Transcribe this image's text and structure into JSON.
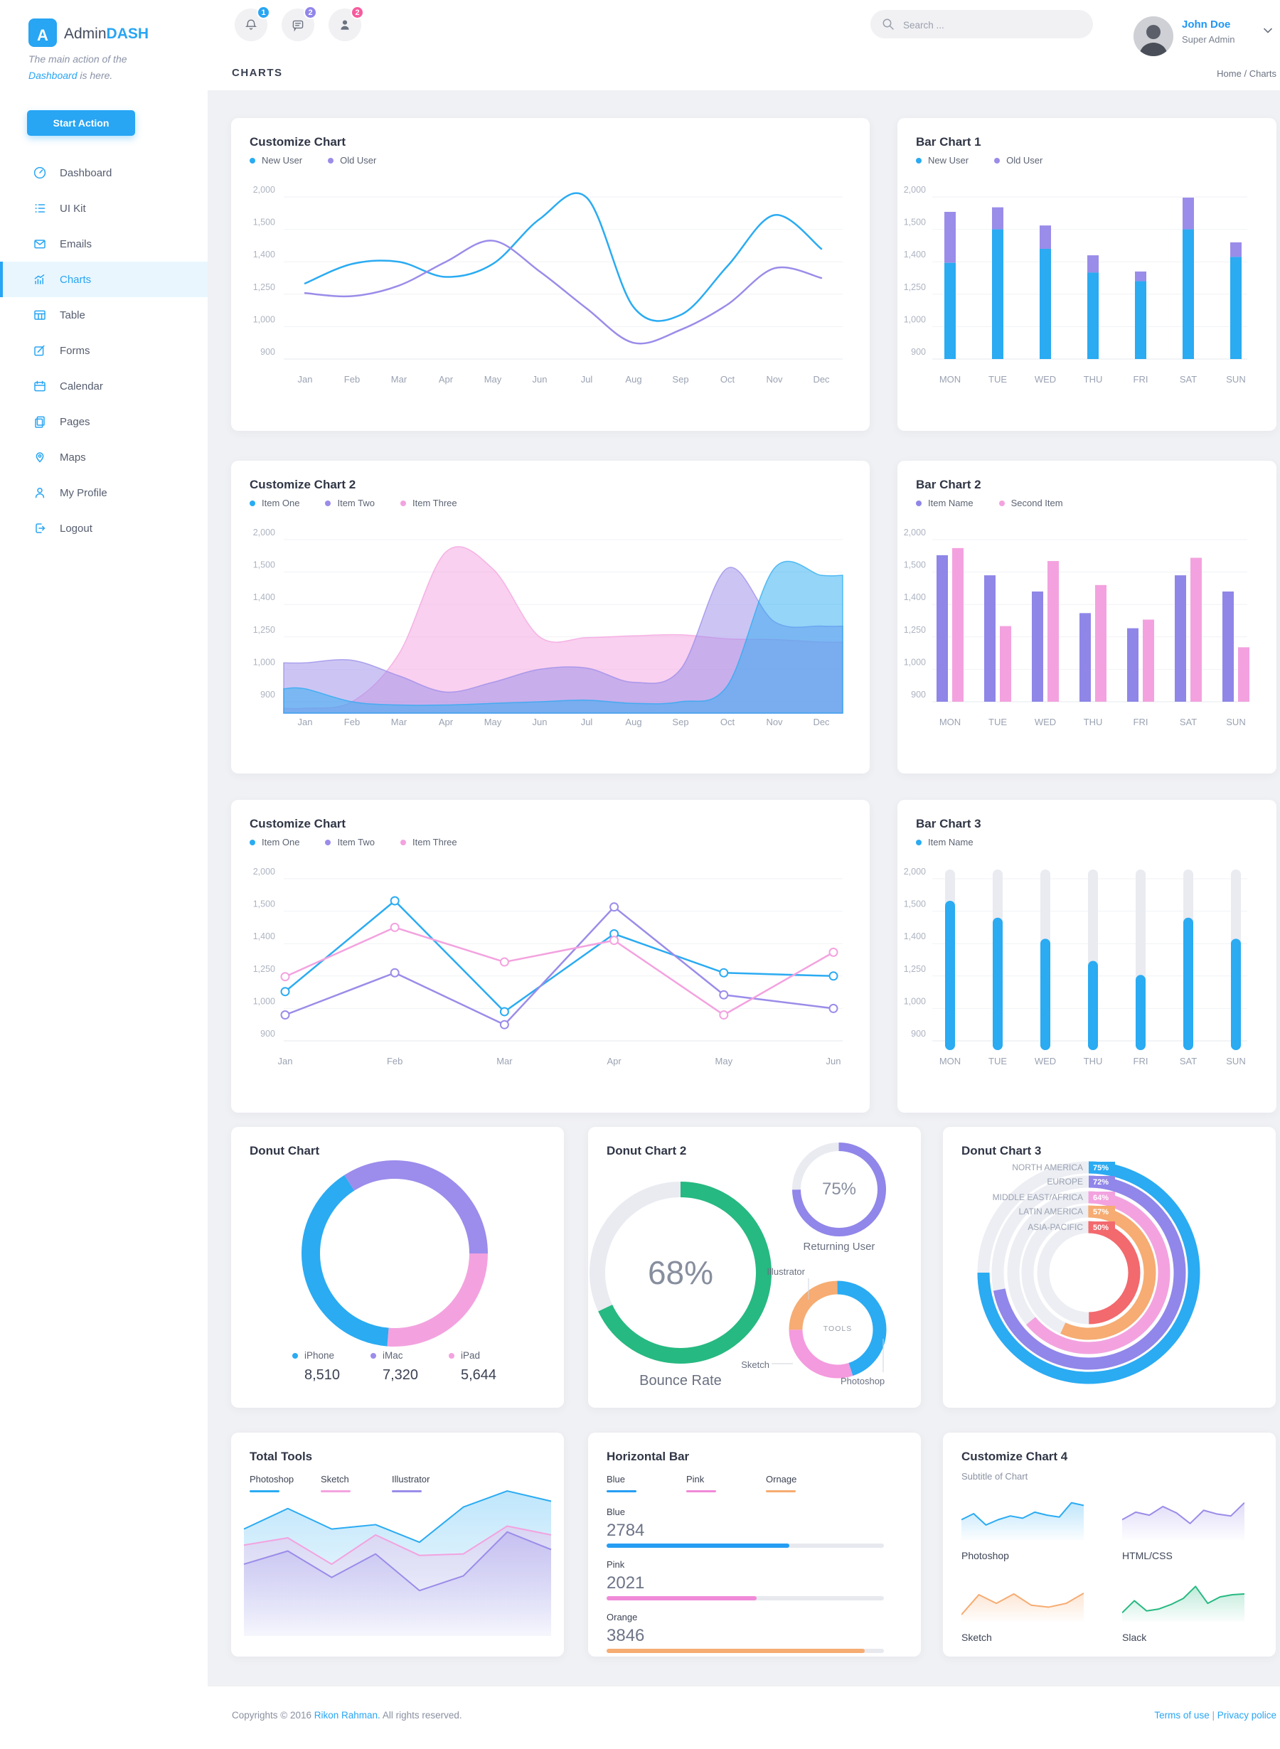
{
  "colors": {
    "accent_blue": "#28a5f3",
    "chart_blue": "#2aabf2",
    "chart_purple": "#9a8ce9",
    "chart_pink": "#f3a2df",
    "chart_green": "#26b981",
    "chart_orange": "#f6ac72",
    "chart_red": "#f2696e",
    "track_gray": "#e9ebf1"
  },
  "sidebar": {
    "logo_letter": "A",
    "brand_admin": "Admin",
    "brand_dash": "DASH",
    "tagline_part1": "The main action of the",
    "tagline_highlight": "Dashboard",
    "tagline_part2": " is here.",
    "action_button": "Start Action",
    "items": [
      {
        "label": "Dashboard",
        "icon": "speedometer-icon",
        "active": false
      },
      {
        "label": "UI Kit",
        "icon": "list-icon",
        "active": false
      },
      {
        "label": "Emails",
        "icon": "envelope-icon",
        "active": false
      },
      {
        "label": "Charts",
        "icon": "chart-icon",
        "active": true
      },
      {
        "label": "Table",
        "icon": "table-icon",
        "active": false
      },
      {
        "label": "Forms",
        "icon": "edit-icon",
        "active": false
      },
      {
        "label": "Calendar",
        "icon": "calendar-icon",
        "active": false
      },
      {
        "label": "Pages",
        "icon": "pages-icon",
        "active": false
      },
      {
        "label": "Maps",
        "icon": "map-pin-icon",
        "active": false
      },
      {
        "label": "My Profile",
        "icon": "user-icon",
        "active": false
      },
      {
        "label": "Logout",
        "icon": "logout-icon",
        "active": false
      }
    ]
  },
  "topbar": {
    "notifications": [
      {
        "icon": "bell-icon",
        "badge": "1",
        "badge_color": "#28a5f3"
      },
      {
        "icon": "chat-icon",
        "badge": "2",
        "badge_color": "#9186e9"
      },
      {
        "icon": "person-icon",
        "badge": "2",
        "badge_color": "#f75b9d"
      }
    ],
    "search_placeholder": "Search ...",
    "user_name": "John Doe",
    "user_role": "Super Admin"
  },
  "page": {
    "heading": "CHARTS",
    "breadcrumb_home": "Home",
    "breadcrumb_sep": " / ",
    "breadcrumb_current": "Charts"
  },
  "chart_data": [
    {
      "title": "Customize Chart",
      "type": "line",
      "x": [
        "Jan",
        "Feb",
        "Mar",
        "Apr",
        "May",
        "Jun",
        "Jul",
        "Aug",
        "Sep",
        "Oct",
        "Nov",
        "Dec"
      ],
      "y_ticks": [
        2000,
        1500,
        1400,
        1250,
        1000,
        900
      ],
      "series": [
        {
          "name": "New User",
          "color": "#2aabf2",
          "values": [
            1300,
            1390,
            1400,
            1330,
            1390,
            1660,
            1990,
            1150,
            1090,
            1380,
            1720,
            1440
          ]
        },
        {
          "name": "Old User",
          "color": "#9a8ce9",
          "values": [
            1255,
            1235,
            1290,
            1400,
            1465,
            1355,
            1140,
            950,
            990,
            1170,
            1370,
            1325
          ]
        }
      ]
    },
    {
      "title": "Bar Chart 1",
      "type": "bar-stacked",
      "value_mode": "cumulative",
      "x": [
        "MON",
        "TUE",
        "WED",
        "THU",
        "FRI",
        "SAT",
        "SUN"
      ],
      "y_ticks": [
        2000,
        1500,
        1400,
        1250,
        1000,
        900
      ],
      "series": [
        {
          "name": "New User",
          "color": "#2aabf2",
          "values": [
            1395,
            1500,
            1440,
            1350,
            1310,
            1500,
            1415
          ]
        },
        {
          "name": "Old User",
          "color": "#9a8ce9",
          "values": [
            1770,
            1840,
            1560,
            1420,
            1355,
            1990,
            1460
          ]
        }
      ]
    },
    {
      "title": "Customize Chart 2",
      "type": "area",
      "x": [
        "Jan",
        "Feb",
        "Mar",
        "Apr",
        "May",
        "Jun",
        "Jul",
        "Aug",
        "Sep",
        "Oct",
        "Nov",
        "Dec"
      ],
      "y_ticks": [
        2000,
        1500,
        1400,
        1250,
        1000,
        900
      ],
      "series": [
        {
          "name": "Item One",
          "color": "#2aabf2",
          "values": [
            940,
            900,
            890,
            890,
            895,
            900,
            905,
            895,
            900,
            950,
            1560,
            1490
          ]
        },
        {
          "name": "Item Two",
          "color": "#9a8ce9",
          "values": [
            1050,
            1070,
            980,
            930,
            960,
            1000,
            1010,
            960,
            1000,
            1560,
            1320,
            1300
          ]
        },
        {
          "name": "Item Three",
          "color": "#f3a2df",
          "values": [
            880,
            900,
            1120,
            1810,
            1550,
            1250,
            1245,
            1255,
            1260,
            1235,
            1230,
            1210
          ]
        }
      ]
    },
    {
      "title": "Bar Chart 2",
      "type": "bar-grouped",
      "x": [
        "MON",
        "TUE",
        "WED",
        "THU",
        "FRI",
        "SAT",
        "SUN"
      ],
      "y_ticks": [
        2000,
        1500,
        1400,
        1250,
        1000,
        900
      ],
      "series": [
        {
          "name": "Item Name",
          "color": "#8f86e8",
          "values": [
            1760,
            1490,
            1440,
            1360,
            1290,
            1490,
            1440
          ]
        },
        {
          "name": "Second Item",
          "color": "#f3a2df",
          "values": [
            1870,
            1300,
            1670,
            1460,
            1330,
            1720,
            1170
          ]
        }
      ]
    },
    {
      "title": "Customize Chart",
      "type": "line-markers",
      "x": [
        "Jan",
        "Feb",
        "Mar",
        "Apr",
        "May",
        "Jun"
      ],
      "y_ticks": [
        2000,
        1500,
        1400,
        1250,
        1000,
        900
      ],
      "series": [
        {
          "name": "Item One",
          "color": "#2aabf2",
          "values": [
            1130,
            1660,
            990,
            1430,
            1265,
            1250
          ]
        },
        {
          "name": "Item Two",
          "color": "#9a8ce9",
          "values": [
            980,
            1265,
            950,
            1565,
            1105,
            1000
          ]
        },
        {
          "name": "Item Three",
          "color": "#f3a2df",
          "values": [
            1245,
            1450,
            1315,
            1410,
            980,
            1360
          ]
        }
      ]
    },
    {
      "title": "Bar Chart 3",
      "type": "bar-capsule",
      "x": [
        "MON",
        "TUE",
        "WED",
        "THU",
        "FRI",
        "SAT",
        "SUN"
      ],
      "y_ticks": [
        2000,
        1500,
        1400,
        1250,
        1000,
        900
      ],
      "series": [
        {
          "name": "Item Name",
          "color": "#2aabf2",
          "values": [
            1660,
            1480,
            1415,
            1320,
            1255,
            1480,
            1415
          ]
        }
      ]
    },
    {
      "title": "Donut Chart",
      "type": "donut",
      "start_angle_deg": 90,
      "slices": [
        {
          "label": "iPad",
          "value": 5644,
          "color": "#f3a2df"
        },
        {
          "label": "iPhone",
          "value": 8510,
          "color": "#2aabf2"
        },
        {
          "label": "iMac",
          "value": 7320,
          "color": "#9c8cec"
        }
      ],
      "legend": [
        {
          "label": "iPhone",
          "value": "8,510",
          "color": "#2aabf2"
        },
        {
          "label": "iMac",
          "value": "7,320",
          "color": "#9c8cec"
        },
        {
          "label": "iPad",
          "value": "5,644",
          "color": "#f3a2df"
        }
      ]
    },
    {
      "title": "Donut Chart 2",
      "type": "donut-gauges",
      "big": {
        "percent": 68,
        "center_label": "68%",
        "caption": "Bounce Rate",
        "color": "#26b981"
      },
      "small": {
        "percent": 75,
        "center_label": "75%",
        "caption": "Returning User",
        "color": "#9186e9"
      },
      "tools": {
        "center_label": "TOOLS",
        "slices": [
          {
            "label": "Photoshop",
            "percent": 45,
            "color": "#2aabf2"
          },
          {
            "label": "Sketch",
            "percent": 30,
            "color": "#f49ade"
          },
          {
            "label": "Illustrator",
            "percent": 25,
            "color": "#f6ac72"
          }
        ]
      }
    },
    {
      "title": "Donut Chart 3",
      "type": "donut-rings",
      "rings": [
        {
          "label": "NORTH AMERICA",
          "percent": 75,
          "color": "#2aabf2"
        },
        {
          "label": "EUROPE",
          "percent": 72,
          "color": "#9186e9"
        },
        {
          "label": "MIDDLE EAST/AFRICA",
          "percent": 64,
          "color": "#f3a2df"
        },
        {
          "label": "LATIN AMERICA",
          "percent": 57,
          "color": "#f6ac72"
        },
        {
          "label": "ASIA-PACIFIC",
          "percent": 50,
          "color": "#f2696e"
        }
      ]
    },
    {
      "title": "Total Tools",
      "type": "area-layered",
      "series": [
        {
          "name": "Photoshop",
          "color": "#2aabf2",
          "values": [
            73,
            87,
            73,
            76,
            64,
            88,
            99,
            92
          ]
        },
        {
          "name": "Sketch",
          "color": "#f3a2df",
          "values": [
            62,
            67,
            49,
            69,
            55,
            56,
            75,
            69
          ]
        },
        {
          "name": "Illustrator",
          "color": "#9a8ce9",
          "values": [
            49,
            58,
            40,
            56,
            31,
            41,
            71,
            59
          ]
        }
      ]
    },
    {
      "title": "Horizontal Bar",
      "type": "hbar",
      "legend": [
        {
          "label": "Blue",
          "color": "#259df3"
        },
        {
          "label": "Pink",
          "color": "#f08ad8"
        },
        {
          "label": "Ornage",
          "color": "#f6ac72"
        }
      ],
      "bars": [
        {
          "label": "Blue",
          "value": "2784",
          "percent": 66,
          "color": "#259df3"
        },
        {
          "label": "Pink",
          "value": "2021",
          "percent": 54,
          "color": "#f08ad8"
        },
        {
          "label": "Orange",
          "value": "3846",
          "percent": 93,
          "color": "#f6ac72"
        }
      ]
    },
    {
      "title": "Customize Chart 4",
      "subtitle": "Subtitle of Chart",
      "type": "sparklines",
      "panels": [
        {
          "label": "Photoshop",
          "color": "#2aabf2",
          "values": [
            50,
            66,
            36,
            50,
            60,
            54,
            70,
            62,
            57,
            95,
            88
          ]
        },
        {
          "label": "HTML/CSS",
          "color": "#9a8ce9",
          "values": [
            50,
            70,
            62,
            85,
            68,
            40,
            75,
            65,
            60,
            95
          ]
        },
        {
          "label": "Sketch",
          "color": "#f6ac72",
          "values": [
            15,
            68,
            45,
            70,
            40,
            35,
            45,
            72
          ]
        },
        {
          "label": "Slack",
          "color": "#26b981",
          "values": [
            20,
            52,
            25,
            30,
            42,
            58,
            90,
            45,
            62,
            68,
            70
          ]
        }
      ]
    }
  ],
  "footer": {
    "copyright_prefix": "Copyrights © 2016 ",
    "copyright_link": "Rikon Rahman.",
    "copyright_suffix": " All rights reserved.",
    "terms": "Terms of use",
    "separator": " | ",
    "privacy": "Privacy police"
  }
}
